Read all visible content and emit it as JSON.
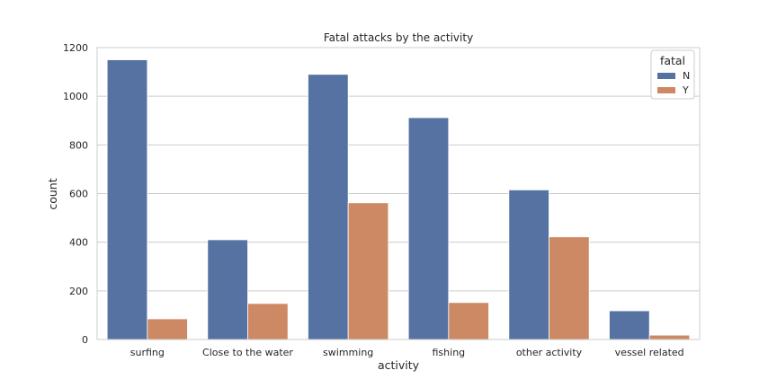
{
  "chart_data": {
    "type": "bar",
    "title": "Fatal attacks by the activity",
    "xlabel": "activity",
    "ylabel": "count",
    "categories": [
      "surfing",
      "Close to the water",
      "swimming",
      "fishing",
      "other activity",
      "vessel related"
    ],
    "series": [
      {
        "name": "N",
        "values": [
          1150,
          410,
          1090,
          912,
          615,
          118
        ],
        "color": "#5572a2"
      },
      {
        "name": "Y",
        "values": [
          85,
          148,
          562,
          152,
          422,
          18
        ],
        "color": "#cc8963"
      }
    ],
    "ylim": [
      0,
      1200
    ],
    "yticks": [
      "0",
      "200",
      "400",
      "600",
      "800",
      "1000",
      "1200"
    ],
    "grid": true,
    "legend": {
      "title": "fatal",
      "placement": "top-right"
    }
  }
}
